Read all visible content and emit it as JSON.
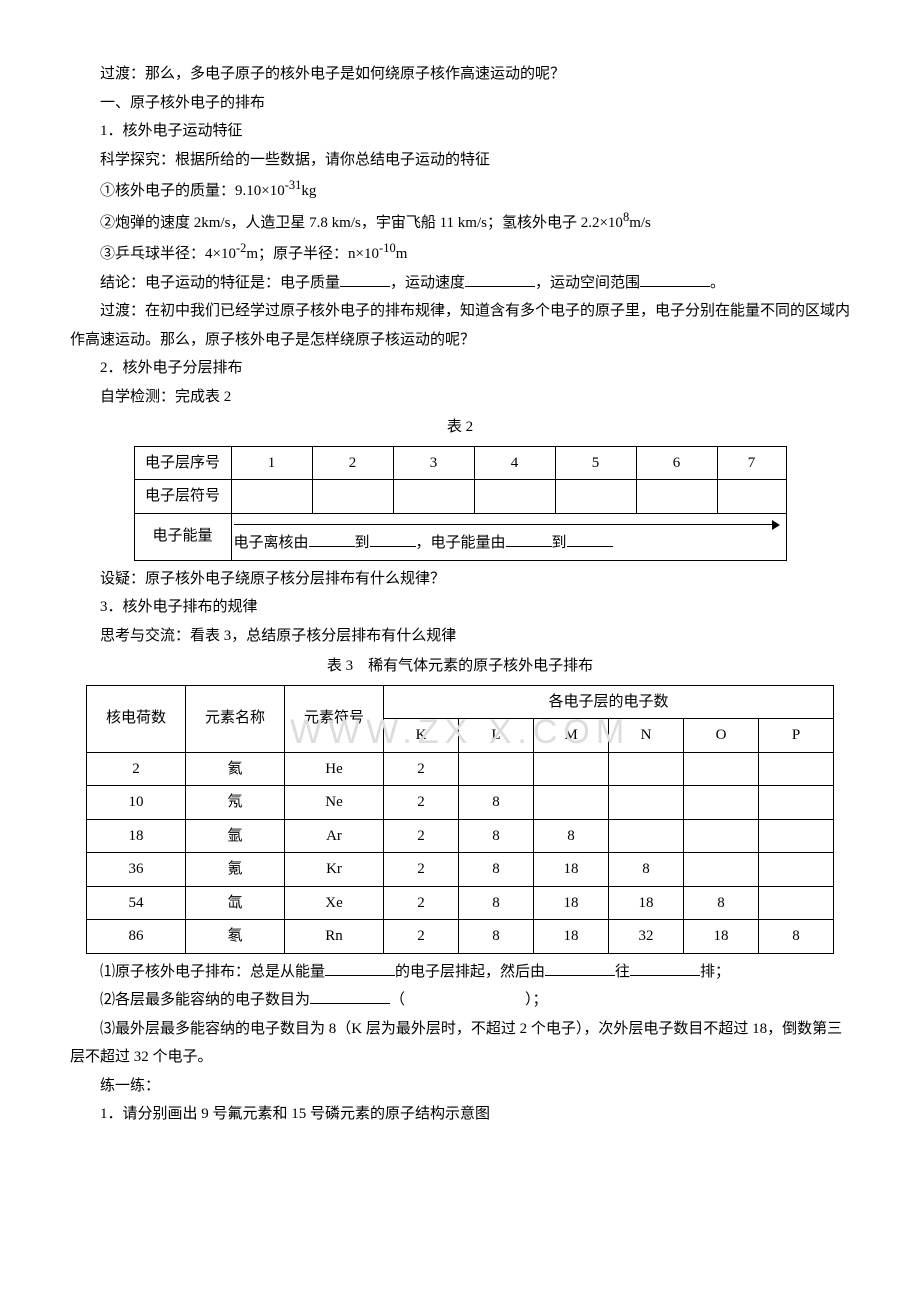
{
  "paragraphs": {
    "p1": "过渡：那么，多电子原子的核外电子是如何绕原子核作高速运动的呢？",
    "h1": "一、原子核外电子的排布",
    "s1": "1．核外电子运动特征",
    "p2": "科学探究：根据所给的一些数据，请你总结电子运动的特征",
    "i1a": "①核外电子的质量：9.10×10",
    "i1b": "kg",
    "i2a": "②炮弹的速度 2km/s，人造卫星 7.8 km/s，宇宙飞船 11 km/s；氢核外电子 2.2×10",
    "i2b": "m/s",
    "i3a": "③乒乓球半径：4×10",
    "i3b": "m；原子半径：n×10",
    "i3c": "m",
    "p3a": "结论：电子运动的特征是：电子质量",
    "p3b": "，运动速度",
    "p3c": "，运动空间范围",
    "p3d": "。",
    "p4": "过渡：在初中我们已经学过原子核外电子的排布规律，知道含有多个电子的原子里，电子分别在能量不同的区域内作高速运动。那么，原子核外电子是怎样绕原子核运动的呢？",
    "s2": "2．核外电子分层排布",
    "p5": "自学检测：完成表 2",
    "cap2": "表 2",
    "p6": "设疑：原子核外电子绕原子核分层排布有什么规律？",
    "s3": "3．核外电子排布的规律",
    "p7": "思考与交流：看表 3，总结原子核分层排布有什么规律",
    "cap3": "表 3　稀有气体元素的原子核外电子排布",
    "q1a": "⑴原子核外电子排布：总是从能量",
    "q1b": "的电子层排起，然后由",
    "q1c": "往",
    "q1d": "排；",
    "q2a": "⑵各层最多能容纳的电子数目为",
    "q2b": "（",
    "q2c": "）；",
    "q3": "⑶最外层最多能容纳的电子数目为 8（K 层为最外层时，不超过 2 个电子），次外层电子数目不超过 18，倒数第三层不超过 32 个电子。",
    "ex": "练一练：",
    "ex1": "1．请分别画出 9 号氟元素和 15 号磷元素的原子结构示意图"
  },
  "sup": {
    "m31": "-31",
    "p8": "8",
    "m2": "-2",
    "m10": "-10"
  },
  "table2": {
    "row1_label": "电子层序号",
    "row1": [
      "1",
      "2",
      "3",
      "4",
      "5",
      "6",
      "7"
    ],
    "row2_label": "电子层符号",
    "row3_label": "电子能量",
    "arrow_a": "电子离核由",
    "arrow_b": "到",
    "arrow_c": "，电子能量由",
    "arrow_d": "到"
  },
  "table3": {
    "head": {
      "c0": "核电荷数",
      "c1": "元素名称",
      "c2": "元素符号",
      "group": "各电子层的电子数"
    },
    "shells": [
      "K",
      "L",
      "M",
      "N",
      "O",
      "P"
    ],
    "rows": [
      {
        "z": "2",
        "name": "氦",
        "sym": "He",
        "e": [
          "2",
          "",
          "",
          "",
          "",
          ""
        ]
      },
      {
        "z": "10",
        "name": "氖",
        "sym": "Ne",
        "e": [
          "2",
          "8",
          "",
          "",
          "",
          ""
        ]
      },
      {
        "z": "18",
        "name": "氩",
        "sym": "Ar",
        "e": [
          "2",
          "8",
          "8",
          "",
          "",
          ""
        ]
      },
      {
        "z": "36",
        "name": "氪",
        "sym": "Kr",
        "e": [
          "2",
          "8",
          "18",
          "8",
          "",
          ""
        ]
      },
      {
        "z": "54",
        "name": "氙",
        "sym": "Xe",
        "e": [
          "2",
          "8",
          "18",
          "18",
          "8",
          ""
        ]
      },
      {
        "z": "86",
        "name": "氡",
        "sym": "Rn",
        "e": [
          "2",
          "8",
          "18",
          "32",
          "18",
          "8"
        ]
      }
    ]
  },
  "watermark": "WWW.ZX X.COM"
}
